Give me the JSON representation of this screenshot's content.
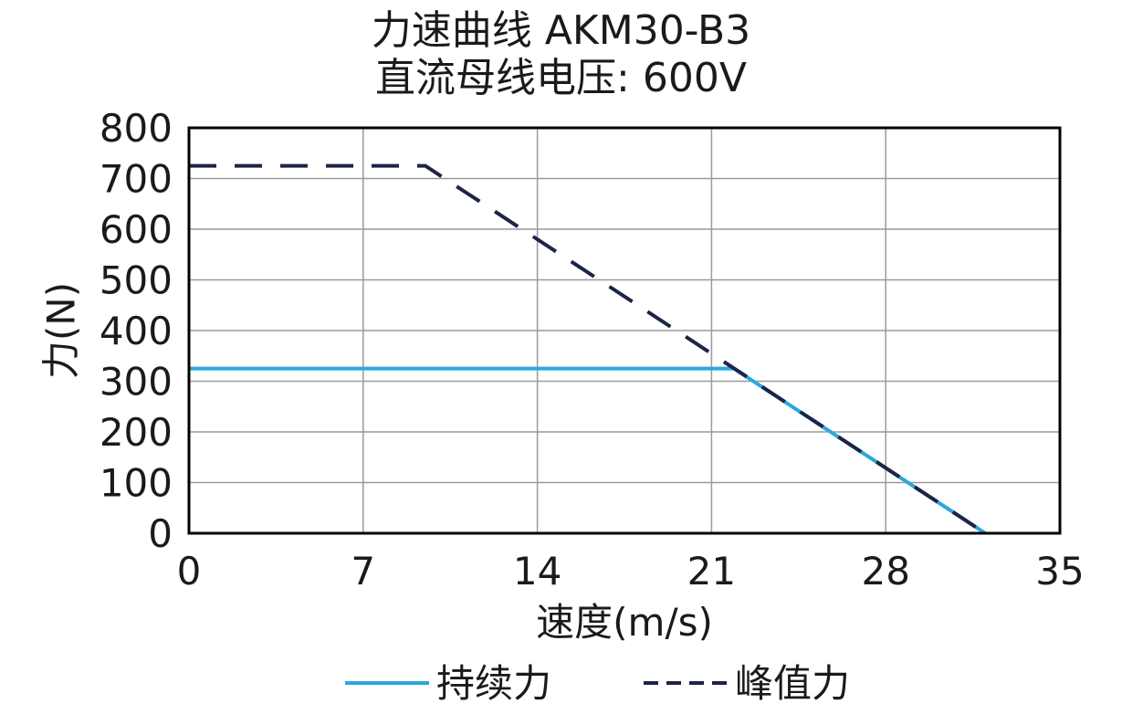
{
  "chart_data": {
    "type": "line",
    "title": "力速曲线 AKM30-B3",
    "subtitle": "直流母线电压: 600V",
    "xlabel": "速度(m/s)",
    "ylabel": "力(N)",
    "xlim": [
      0,
      35
    ],
    "ylim": [
      0,
      800
    ],
    "x_ticks": [
      0,
      7,
      14,
      21,
      28,
      35
    ],
    "y_ticks": [
      0,
      100,
      200,
      300,
      400,
      500,
      600,
      700,
      800
    ],
    "grid": true,
    "legend_position": "bottom",
    "series": [
      {
        "name": "持续力",
        "style": "solid",
        "color": "#29a8dc",
        "points": [
          [
            0,
            325
          ],
          [
            21.9,
            325
          ],
          [
            32,
            0
          ]
        ]
      },
      {
        "name": "峰值力",
        "style": "dashed",
        "color": "#1c2447",
        "points": [
          [
            0,
            725
          ],
          [
            9.5,
            725
          ],
          [
            32,
            0
          ]
        ]
      }
    ]
  }
}
